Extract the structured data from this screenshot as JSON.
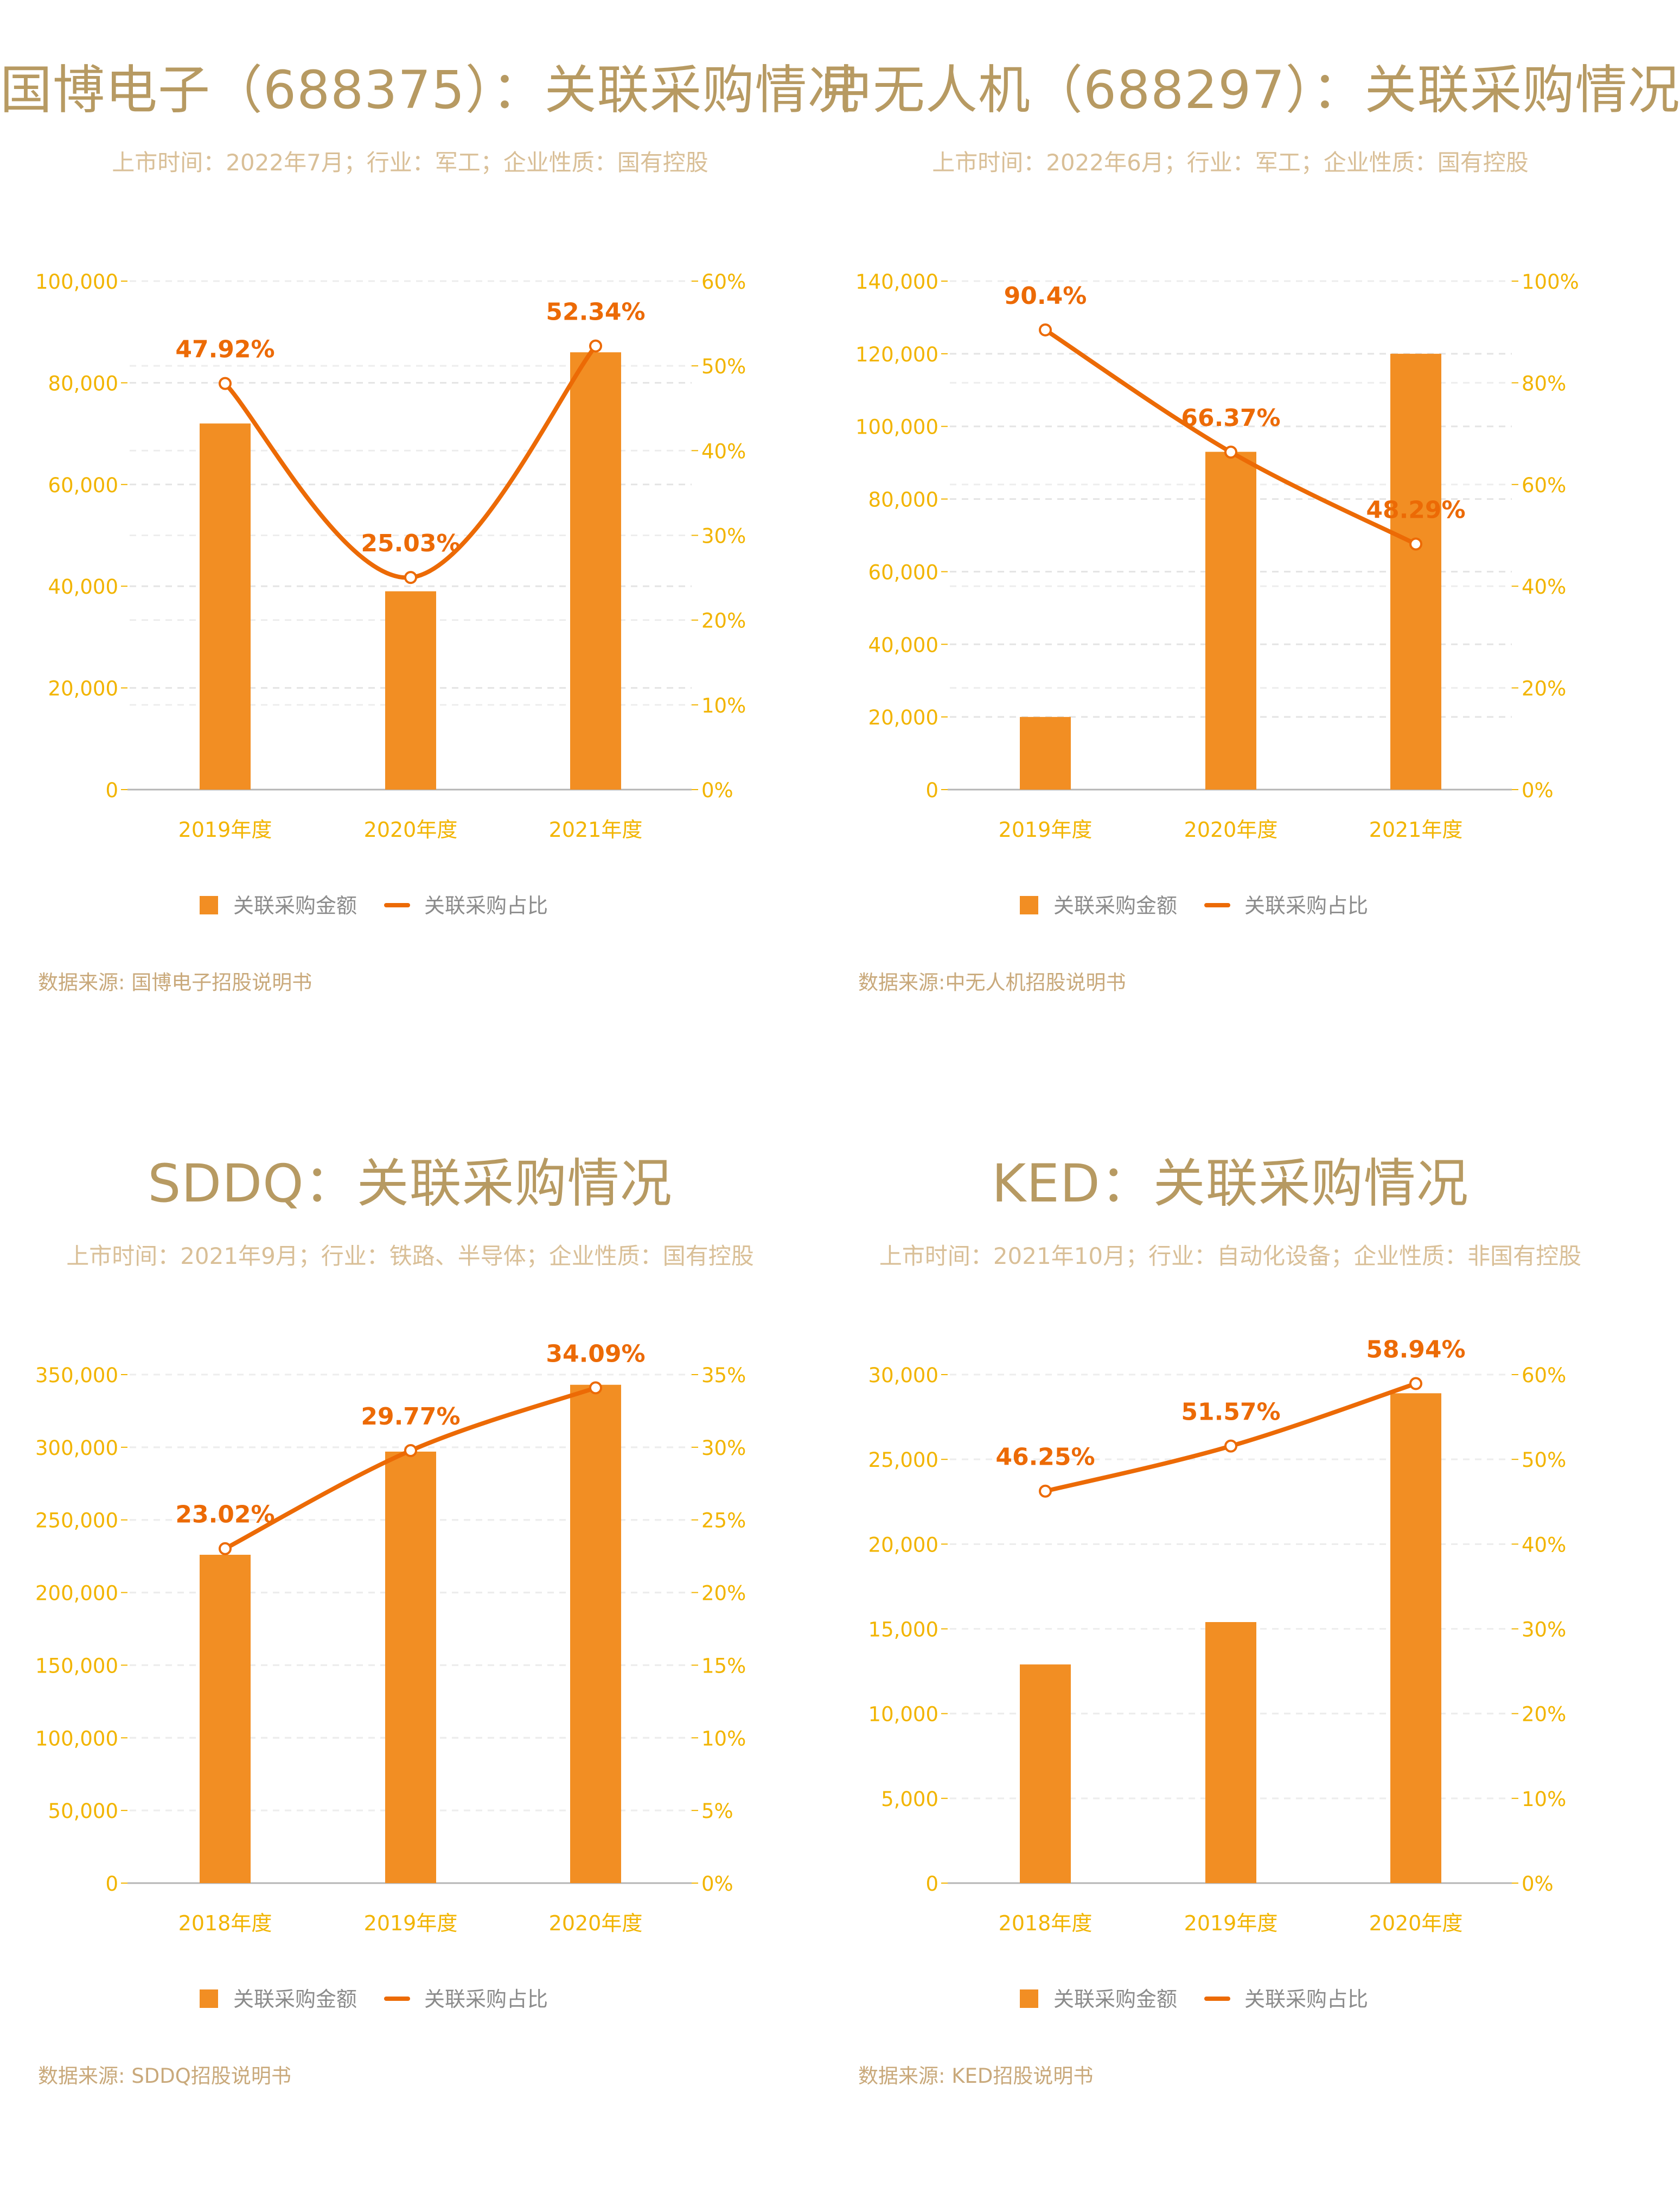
{
  "colors": {
    "bar": "#f28e23",
    "line": "#ec6a05",
    "tick": "#f2b400",
    "title": "#b79a62",
    "subtitle": "#d9bf97",
    "legend_text": "#8b8b8b",
    "source": "#c9a97b"
  },
  "legend": {
    "bar_label": "关联采购金额",
    "line_label": "关联采购占比"
  },
  "panels": [
    {
      "title": "国博电子（688375）：关联采购情况",
      "subtitle": "上市时间：2022年7月；行业：军工；企业性质：国有控股",
      "source": "数据来源: 国博电子招股说明书"
    },
    {
      "title": "中无人机（688297）：关联采购情况",
      "subtitle": "上市时间：2022年6月；行业：军工；企业性质：国有控股",
      "source": "数据来源:中无人机招股说明书"
    },
    {
      "title": "SDDQ：关联采购情况",
      "subtitle": "上市时间：2021年9月；行业：铁路、半导体；企业性质：国有控股",
      "source": "数据来源: SDDQ招股说明书"
    },
    {
      "title": "KED：关联采购情况",
      "subtitle": "上市时间：2021年10月；行业：自动化设备；企业性质：非国有控股",
      "source": "数据来源: KED招股说明书"
    }
  ],
  "chart_data": [
    {
      "type": "bar",
      "categories": [
        "2019年度",
        "2020年度",
        "2021年度"
      ],
      "series": [
        {
          "name": "关联采购金额",
          "type": "bar",
          "axis": "left",
          "values": [
            72000,
            39000,
            86000
          ]
        },
        {
          "name": "关联采购占比",
          "type": "line",
          "axis": "right",
          "smooth": true,
          "values": [
            47.92,
            25.03,
            52.34
          ],
          "labels": [
            "47.92%",
            "25.03%",
            "52.34%"
          ]
        }
      ],
      "y_left": {
        "ticks": [
          0,
          20000,
          40000,
          60000,
          80000,
          100000
        ],
        "tick_labels": [
          "0",
          "20,000",
          "40,000",
          "60,000",
          "80,000",
          "100,000"
        ],
        "ylim": [
          0,
          100000
        ]
      },
      "y_right": {
        "ticks": [
          0,
          10,
          20,
          30,
          40,
          50,
          60
        ],
        "tick_labels": [
          "0%",
          "10%",
          "20%",
          "30%",
          "40%",
          "50%",
          "60%"
        ],
        "ylim": [
          0,
          60
        ]
      },
      "grid": true,
      "legend_position": "bottom"
    },
    {
      "type": "bar",
      "categories": [
        "2019年度",
        "2020年度",
        "2021年度"
      ],
      "series": [
        {
          "name": "关联采购金额",
          "type": "bar",
          "axis": "left",
          "values": [
            20000,
            93000,
            120000
          ]
        },
        {
          "name": "关联采购占比",
          "type": "line",
          "axis": "right",
          "smooth": true,
          "values": [
            90.4,
            66.37,
            48.29
          ],
          "labels": [
            "90.4%",
            "66.37%",
            "48.29%"
          ]
        }
      ],
      "y_left": {
        "ticks": [
          0,
          20000,
          40000,
          60000,
          80000,
          100000,
          120000,
          140000
        ],
        "tick_labels": [
          "0",
          "20,000",
          "40,000",
          "60,000",
          "80,000",
          "100,000",
          "120,000",
          "140,000"
        ],
        "ylim": [
          0,
          140000
        ]
      },
      "y_right": {
        "ticks": [
          0,
          20,
          40,
          60,
          80,
          100
        ],
        "tick_labels": [
          "0%",
          "20%",
          "40%",
          "60%",
          "80%",
          "100%"
        ],
        "ylim": [
          0,
          100
        ]
      },
      "grid": true,
      "legend_position": "bottom"
    },
    {
      "type": "bar",
      "categories": [
        "2018年度",
        "2019年度",
        "2020年度"
      ],
      "series": [
        {
          "name": "关联采购金额",
          "type": "bar",
          "axis": "left",
          "values": [
            226000,
            297000,
            343000
          ]
        },
        {
          "name": "关联采购占比",
          "type": "line",
          "axis": "right",
          "smooth": true,
          "values": [
            23.02,
            29.77,
            34.09
          ],
          "labels": [
            "23.02%",
            "29.77%",
            "34.09%"
          ]
        }
      ],
      "y_left": {
        "ticks": [
          0,
          50000,
          100000,
          150000,
          200000,
          250000,
          300000,
          350000
        ],
        "tick_labels": [
          "0",
          "50,000",
          "100,000",
          "150,000",
          "200,000",
          "250,000",
          "300,000",
          "350,000"
        ],
        "ylim": [
          0,
          350000
        ]
      },
      "y_right": {
        "ticks": [
          0,
          5,
          10,
          15,
          20,
          25,
          30,
          35
        ],
        "tick_labels": [
          "0%",
          "5%",
          "10%",
          "15%",
          "20%",
          "25%",
          "30%",
          "35%"
        ],
        "ylim": [
          0,
          35
        ]
      },
      "grid": true,
      "legend_position": "bottom"
    },
    {
      "type": "bar",
      "categories": [
        "2018年度",
        "2019年度",
        "2020年度"
      ],
      "series": [
        {
          "name": "关联采购金额",
          "type": "bar",
          "axis": "left",
          "values": [
            12900,
            15400,
            28900
          ]
        },
        {
          "name": "关联采购占比",
          "type": "line",
          "axis": "right",
          "smooth": true,
          "values": [
            46.25,
            51.57,
            58.94
          ],
          "labels": [
            "46.25%",
            "51.57%",
            "58.94%"
          ]
        }
      ],
      "y_left": {
        "ticks": [
          0,
          5000,
          10000,
          15000,
          20000,
          25000,
          30000
        ],
        "tick_labels": [
          "0",
          "5,000",
          "10,000",
          "15,000",
          "20,000",
          "25,000",
          "30,000"
        ],
        "ylim": [
          0,
          30000
        ]
      },
      "y_right": {
        "ticks": [
          0,
          10,
          20,
          30,
          40,
          50,
          60
        ],
        "tick_labels": [
          "0%",
          "10%",
          "20%",
          "30%",
          "40%",
          "50%",
          "60%"
        ],
        "ylim": [
          0,
          60
        ]
      },
      "grid": true,
      "legend_position": "bottom"
    }
  ]
}
